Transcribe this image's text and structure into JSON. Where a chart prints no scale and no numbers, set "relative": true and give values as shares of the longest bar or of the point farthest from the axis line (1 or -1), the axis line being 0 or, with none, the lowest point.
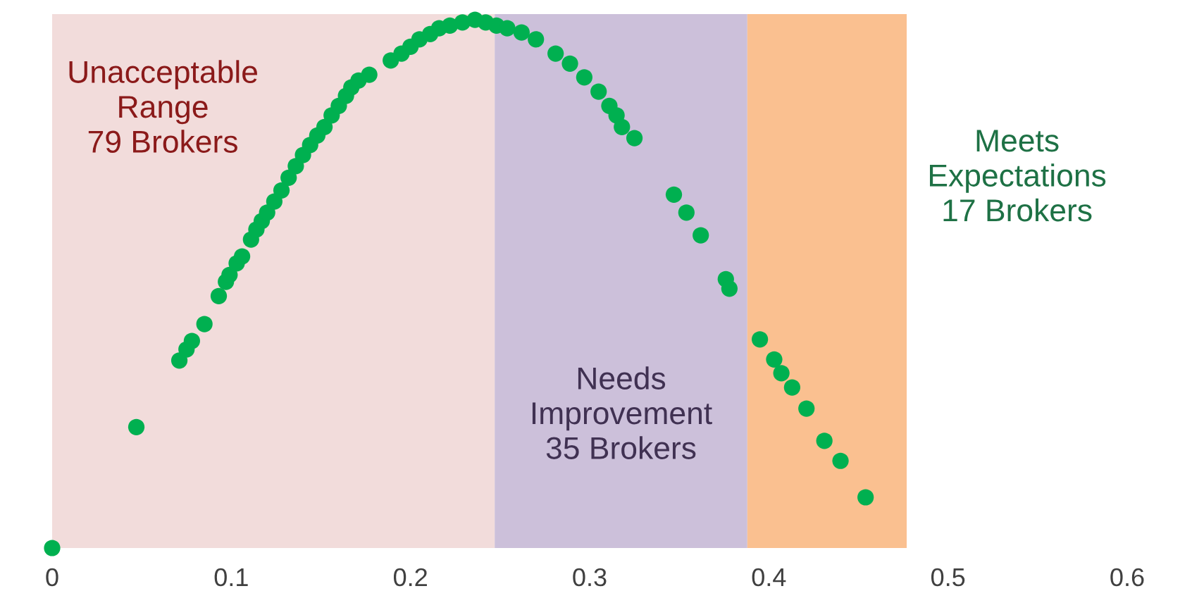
{
  "chart_data": {
    "type": "scatter",
    "relative": true,
    "tick_labels": "x",
    "marker": "circle",
    "grid": false,
    "xlim": [
      0,
      0.6
    ],
    "xticks": [
      0,
      0.1,
      0.2,
      0.3,
      0.4,
      0.5,
      0.6
    ],
    "bands": [
      {
        "axis": "x",
        "from": 0,
        "to": 0.247,
        "label": "Unacceptable\nRange\n79 Brokers",
        "color": "#f2dcdb"
      },
      {
        "axis": "x",
        "from": 0.247,
        "to": 0.388,
        "label": "Needs\nImprovement\n35 Brokers",
        "color": "#ccc0da"
      },
      {
        "axis": "x",
        "from": 0.388,
        "to": 0.477,
        "color": "#fac090"
      },
      {
        "axis": "x",
        "from": 0.477,
        "to": 0.6,
        "label": "Meets\nExpectations\n17 Brokers",
        "color": "#ffffff"
      }
    ],
    "series": [
      {
        "color": "#00b050",
        "x": [
          0,
          0.047,
          0.071,
          0.075,
          0.078,
          0.085,
          0.093,
          0.097,
          0.099,
          0.103,
          0.106,
          0.111,
          0.114,
          0.117,
          0.12,
          0.124,
          0.128,
          0.132,
          0.136,
          0.14,
          0.144,
          0.148,
          0.152,
          0.156,
          0.16,
          0.164,
          0.167,
          0.171,
          0.177,
          0.189,
          0.195,
          0.2,
          0.205,
          0.211,
          0.216,
          0.222,
          0.229,
          0.236,
          0.242,
          0.248,
          0.254,
          0.262,
          0.27,
          0.281,
          0.289,
          0.297,
          0.305,
          0.311,
          0.315,
          0.318,
          0.325,
          0.347,
          0.354,
          0.362,
          0.376,
          0.378,
          0.395,
          0.403,
          0.407,
          0.413,
          0.421,
          0.431,
          0.44,
          0.454
        ],
        "values": [
          0,
          0.229,
          0.355,
          0.376,
          0.392,
          0.424,
          0.477,
          0.504,
          0.517,
          0.539,
          0.552,
          0.584,
          0.603,
          0.619,
          0.635,
          0.656,
          0.677,
          0.701,
          0.723,
          0.744,
          0.763,
          0.781,
          0.797,
          0.819,
          0.837,
          0.856,
          0.872,
          0.885,
          0.896,
          0.923,
          0.936,
          0.949,
          0.963,
          0.973,
          0.984,
          0.989,
          0.995,
          1,
          0.995,
          0.989,
          0.984,
          0.976,
          0.963,
          0.936,
          0.917,
          0.891,
          0.864,
          0.837,
          0.819,
          0.797,
          0.776,
          0.669,
          0.635,
          0.592,
          0.509,
          0.491,
          0.395,
          0.357,
          0.331,
          0.304,
          0.264,
          0.203,
          0.165,
          0.096
        ]
      }
    ]
  }
}
